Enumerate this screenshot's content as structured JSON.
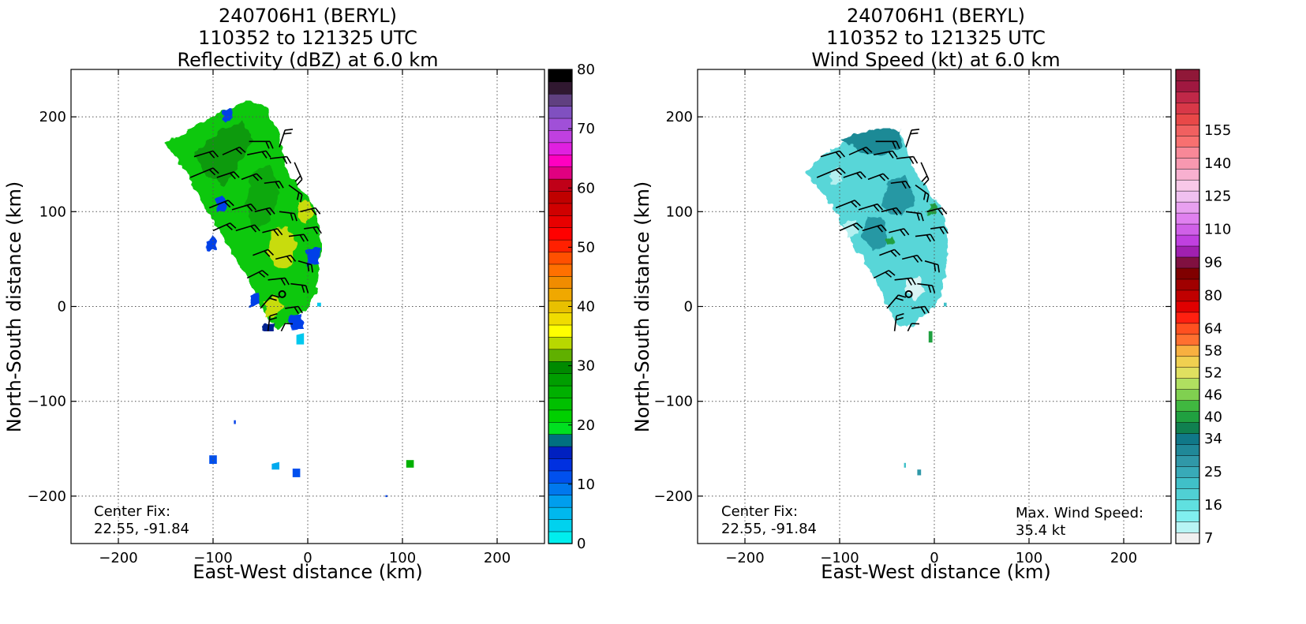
{
  "chart_data": [
    {
      "type": "heatmap",
      "title": [
        "240706H1 (BERYL)",
        "110352 to 121325 UTC",
        "Reflectivity (dBZ) at 6.0 km"
      ],
      "xlabel": "East-West distance (km)",
      "ylabel": "North-South distance (km)",
      "xlim": [
        -250,
        250
      ],
      "ylim": [
        -250,
        250
      ],
      "xticks": [
        "−200",
        "−100",
        "0",
        "100",
        "200"
      ],
      "xtick_values": [
        -200,
        -100,
        0,
        100,
        200
      ],
      "yticks": [
        "200",
        "100",
        "0",
        "−100",
        "−200"
      ],
      "ytick_values": [
        200,
        100,
        0,
        -100,
        -200
      ],
      "grid": true,
      "colorbar": {
        "min": 0,
        "max": 80,
        "tick_values": [
          0,
          10,
          20,
          30,
          40,
          50,
          60,
          70,
          80
        ],
        "tick_labels": [
          "0",
          "10",
          "20",
          "30",
          "40",
          "50",
          "60",
          "70",
          "80"
        ],
        "colors": [
          "#00eeee",
          "#00d2ee",
          "#00b8ee",
          "#009eee",
          "#0078ee",
          "#0050ee",
          "#0030e0",
          "#0020c0",
          "#007080",
          "#00e020",
          "#00d000",
          "#00c000",
          "#00b000",
          "#009e00",
          "#008a00",
          "#60b000",
          "#b8d800",
          "#ffff00",
          "#f0dc00",
          "#e8c000",
          "#f0a800",
          "#f08c00",
          "#ff7000",
          "#ff5000",
          "#ff2000",
          "#ff0000",
          "#e80000",
          "#d00000",
          "#c00000",
          "#c00018",
          "#e00080",
          "#ff00c0",
          "#e020e0",
          "#c040e0",
          "#a050d8",
          "#8050c0",
          "#604080",
          "#301830",
          "#000000"
        ]
      },
      "center_fix": {
        "label": "Center Fix:",
        "value": "22.55, -91.84"
      },
      "center_km": [
        -27,
        13
      ]
    },
    {
      "type": "heatmap",
      "title": [
        "240706H1 (BERYL)",
        "110352 to 121325 UTC",
        "Wind Speed (kt) at 6.0 km"
      ],
      "xlabel": "East-West distance (km)",
      "ylabel": "North-South distance (km)",
      "xlim": [
        -250,
        250
      ],
      "ylim": [
        -250,
        250
      ],
      "xticks": [
        "−200",
        "−100",
        "0",
        "100",
        "200"
      ],
      "xtick_values": [
        -200,
        -100,
        0,
        100,
        200
      ],
      "yticks": [
        "200",
        "100",
        "0",
        "−100",
        "−200"
      ],
      "ytick_values": [
        200,
        100,
        0,
        -100,
        -200
      ],
      "grid": true,
      "colorbar": {
        "tick_labels": [
          "7",
          "16",
          "25",
          "34",
          "40",
          "46",
          "52",
          "58",
          "64",
          "80",
          "96",
          "110",
          "125",
          "140",
          "155"
        ],
        "tick_bins": [
          0,
          3,
          6,
          9,
          11,
          13,
          15,
          17,
          19,
          22,
          25,
          28,
          31,
          34,
          37
        ],
        "colors": [
          "#f0f0f0",
          "#b8f4f4",
          "#80eeee",
          "#60e0e0",
          "#50d0d4",
          "#40c0c8",
          "#38aab8",
          "#3098a8",
          "#208898",
          "#107888",
          "#108050",
          "#20a040",
          "#40b840",
          "#80d050",
          "#b0e060",
          "#e0e060",
          "#f0d050",
          "#f8b040",
          "#ff7030",
          "#ff5020",
          "#ff2010",
          "#e00000",
          "#c00000",
          "#a00000",
          "#800000",
          "#801040",
          "#a020b0",
          "#c040e0",
          "#d060e8",
          "#e080f0",
          "#e8a0f0",
          "#f0c0f0",
          "#f8c8e8",
          "#f8b0d0",
          "#f898b0",
          "#f88898",
          "#f87070",
          "#f06060",
          "#e84848",
          "#d83848",
          "#c02848",
          "#a01840",
          "#901838"
        ]
      },
      "center_fix": {
        "label": "Center Fix:",
        "value": "22.55, -91.84"
      },
      "max_wind": {
        "label": "Max. Wind Speed:",
        "value": "35.4 kt"
      },
      "center_km": [
        -27,
        13
      ]
    }
  ]
}
